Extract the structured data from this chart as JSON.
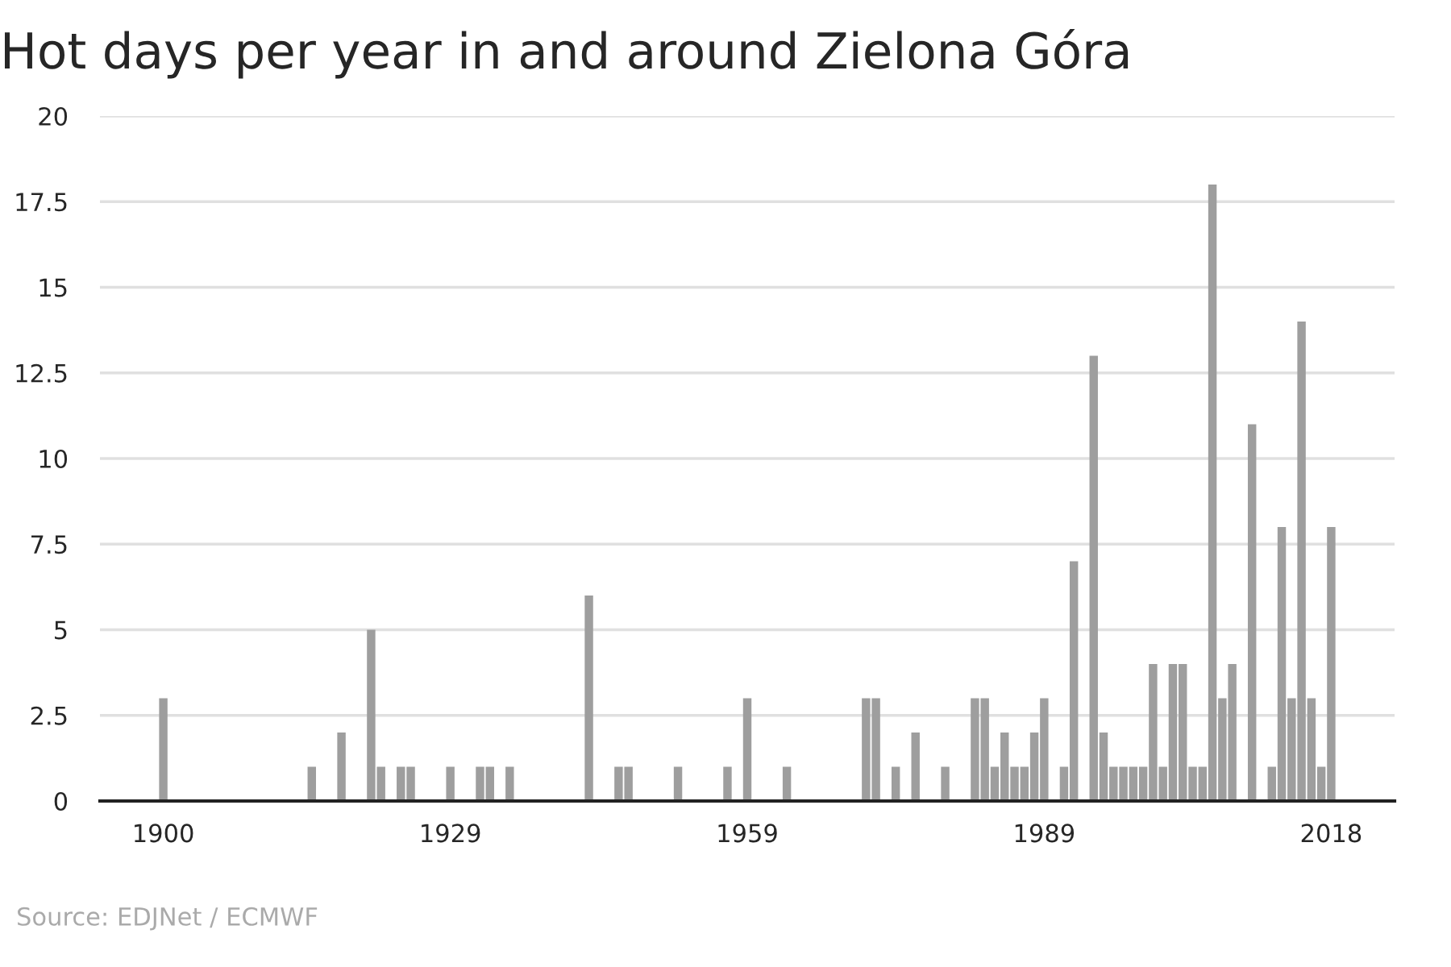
{
  "chart_data": {
    "type": "bar",
    "title": "Hot days per year in and around Zielona Góra",
    "x": [
      1900,
      1915,
      1918,
      1921,
      1922,
      1924,
      1925,
      1929,
      1932,
      1933,
      1935,
      1943,
      1946,
      1947,
      1952,
      1957,
      1959,
      1963,
      1971,
      1972,
      1974,
      1976,
      1979,
      1982,
      1983,
      1984,
      1985,
      1986,
      1987,
      1988,
      1989,
      1991,
      1992,
      1994,
      1995,
      1996,
      1997,
      1998,
      1999,
      2000,
      2001,
      2002,
      2003,
      2004,
      2005,
      2006,
      2007,
      2008,
      2010,
      2012,
      2013,
      2014,
      2015,
      2016,
      2017,
      2018
    ],
    "values": [
      3,
      1,
      2,
      5,
      1,
      1,
      1,
      1,
      1,
      1,
      1,
      6,
      1,
      1,
      1,
      1,
      3,
      1,
      3,
      3,
      1,
      2,
      1,
      3,
      3,
      1,
      2,
      1,
      1,
      2,
      3,
      1,
      7,
      13,
      2,
      1,
      1,
      1,
      1,
      4,
      1,
      4,
      4,
      1,
      1,
      18,
      3,
      4,
      11,
      1,
      8,
      3,
      14,
      3,
      1,
      8
    ],
    "color": "#9e9e9e",
    "xlim": [
      1893.6,
      2024.4
    ],
    "xticks": [
      1900,
      1929,
      1959,
      1989,
      2018
    ],
    "ylim": [
      0,
      20
    ],
    "yticks": [
      0,
      2.5,
      5,
      7.5,
      10,
      12.5,
      15,
      17.5,
      20
    ],
    "grid": "y",
    "annotations": [
      "Source: EDJNet / ECMWF"
    ]
  }
}
